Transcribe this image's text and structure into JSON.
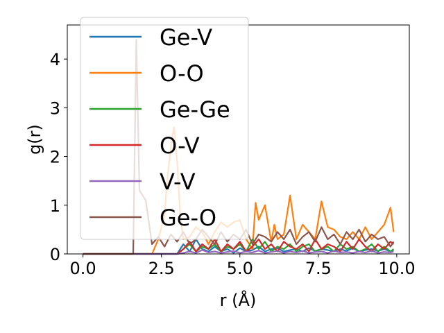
{
  "chart_data": {
    "type": "line",
    "title": "",
    "xlabel": "r (Å)",
    "ylabel": "g(r)",
    "xlim": [
      -0.5,
      10.4
    ],
    "ylim": [
      0,
      4.7
    ],
    "xticks": [
      0.0,
      2.5,
      5.0,
      7.5,
      10.0
    ],
    "xtick_labels": [
      "0.0",
      "2.5",
      "5.0",
      "7.5",
      "10.0"
    ],
    "yticks": [
      0,
      1,
      2,
      3,
      4
    ],
    "ytick_labels": [
      "0",
      "1",
      "2",
      "3",
      "4"
    ],
    "grid": false,
    "legend_position": "upper-left",
    "series": [
      {
        "name": "Ge-V",
        "color": "#1f77b4",
        "x": [
          0.0,
          3.0,
          3.2,
          3.4,
          3.6,
          3.8,
          4.0,
          4.2,
          4.4,
          4.6,
          4.8,
          5.0,
          5.2,
          5.4,
          5.6,
          5.8,
          6.0,
          6.2,
          6.4,
          6.6,
          6.8,
          7.0,
          7.2,
          7.4,
          7.6,
          7.8,
          8.0,
          8.2,
          8.4,
          8.6,
          8.8,
          9.0,
          9.2,
          9.4,
          9.6,
          9.8,
          9.9
        ],
        "y": [
          0,
          0,
          0.2,
          0.05,
          0.3,
          0.1,
          0.05,
          0.15,
          0.05,
          0.1,
          0.02,
          0.12,
          0.05,
          0.08,
          0.15,
          0.05,
          0.1,
          0.12,
          0.05,
          0.08,
          0.1,
          0.05,
          0.12,
          0.06,
          0.1,
          0.08,
          0.05,
          0.1,
          0.06,
          0.12,
          0.05,
          0.08,
          0.1,
          0.06,
          0.1,
          0.05,
          0.08
        ]
      },
      {
        "name": "O-O",
        "color": "#ff7f0e",
        "x": [
          0.0,
          2.2,
          2.4,
          2.6,
          2.7,
          2.8,
          2.9,
          3.0,
          3.1,
          3.2,
          3.4,
          3.6,
          3.8,
          4.0,
          4.2,
          4.4,
          4.6,
          4.8,
          5.0,
          5.2,
          5.4,
          5.5,
          5.6,
          5.8,
          6.0,
          6.1,
          6.2,
          6.4,
          6.6,
          6.8,
          7.0,
          7.2,
          7.4,
          7.6,
          7.8,
          8.0,
          8.2,
          8.4,
          8.6,
          8.8,
          9.0,
          9.2,
          9.4,
          9.6,
          9.8,
          9.9
        ],
        "y": [
          0,
          0,
          0.3,
          0.8,
          1.6,
          2.2,
          2.6,
          1.9,
          0.8,
          0.3,
          0.35,
          0.55,
          0.45,
          0.2,
          0.45,
          0.65,
          0.55,
          0.65,
          0.7,
          0.3,
          0.1,
          1.05,
          0.7,
          1.0,
          0.25,
          0.6,
          0.3,
          0.4,
          1.2,
          0.3,
          0.6,
          0.45,
          0.3,
          1.08,
          0.55,
          0.5,
          0.35,
          0.3,
          0.45,
          0.3,
          0.55,
          0.3,
          0.45,
          0.6,
          0.95,
          0.45
        ]
      },
      {
        "name": "Ge-Ge",
        "color": "#2ca02c",
        "x": [
          0.0,
          3.0,
          3.2,
          3.4,
          3.6,
          3.8,
          4.0,
          4.2,
          4.4,
          4.6,
          4.8,
          5.0,
          5.2,
          5.4,
          5.6,
          5.8,
          6.0,
          6.2,
          6.4,
          6.6,
          6.8,
          7.0,
          7.2,
          7.4,
          7.6,
          7.8,
          8.0,
          8.2,
          8.4,
          8.6,
          8.8,
          9.0,
          9.2,
          9.4,
          9.6,
          9.8,
          9.9
        ],
        "y": [
          0,
          0,
          0.1,
          0.2,
          0.05,
          0.15,
          0.1,
          0.2,
          0.05,
          0.15,
          0.1,
          0.2,
          0.05,
          0.3,
          0.1,
          0.25,
          0.05,
          0.15,
          0.1,
          0.2,
          0.05,
          0.15,
          0.2,
          0.05,
          0.1,
          0.15,
          0.05,
          0.2,
          0.1,
          0.15,
          0.05,
          0.1,
          0.2,
          0.05,
          0.15,
          0.05,
          0.1
        ]
      },
      {
        "name": "O-V",
        "color": "#d62728",
        "x": [
          0.0,
          3.0,
          3.2,
          3.4,
          3.6,
          3.8,
          4.0,
          4.2,
          4.4,
          4.6,
          4.8,
          5.0,
          5.2,
          5.4,
          5.6,
          5.8,
          6.0,
          6.2,
          6.4,
          6.6,
          6.8,
          7.0,
          7.2,
          7.4,
          7.6,
          7.8,
          8.0,
          8.2,
          8.4,
          8.6,
          8.8,
          9.0,
          9.2,
          9.4,
          9.6,
          9.8,
          9.9
        ],
        "y": [
          0,
          0,
          0.1,
          0.25,
          0.05,
          0.2,
          0.1,
          0.3,
          0.05,
          0.2,
          0.1,
          0.25,
          0.05,
          0.15,
          0.3,
          0.1,
          0.2,
          0.05,
          0.25,
          0.15,
          0.1,
          0.2,
          0.05,
          0.3,
          0.1,
          0.2,
          0.15,
          0.05,
          0.25,
          0.1,
          0.3,
          0.15,
          0.05,
          0.2,
          0.1,
          0.25,
          0.2
        ]
      },
      {
        "name": "V-V",
        "color": "#9467bd",
        "x": [
          0.0,
          3.0,
          3.2,
          3.4,
          3.6,
          3.8,
          4.0,
          4.2,
          4.4,
          4.6,
          4.8,
          5.0,
          5.2,
          5.4,
          5.6,
          5.8,
          6.0,
          6.2,
          6.4,
          6.6,
          6.8,
          7.0,
          7.2,
          7.4,
          7.6,
          7.8,
          8.0,
          8.2,
          8.4,
          8.6,
          8.8,
          9.0,
          9.2,
          9.4,
          9.6,
          9.8,
          9.9
        ],
        "y": [
          0,
          0,
          0.02,
          0.05,
          0.02,
          0.08,
          0.03,
          0.05,
          0.02,
          0.04,
          0.06,
          0.02,
          0.05,
          0.03,
          0.07,
          0.02,
          0.04,
          0.06,
          0.02,
          0.05,
          0.03,
          0.06,
          0.02,
          0.04,
          0.05,
          0.02,
          0.06,
          0.03,
          0.04,
          0.02,
          0.05,
          0.03,
          0.06,
          0.02,
          0.04,
          0.03,
          0.05
        ]
      },
      {
        "name": "Ge-O",
        "color": "#8c564b",
        "x": [
          0.0,
          1.6,
          1.7,
          1.8,
          1.9,
          2.0,
          2.2,
          2.4,
          2.6,
          2.8,
          3.0,
          3.2,
          3.4,
          3.6,
          3.8,
          4.0,
          4.2,
          4.4,
          4.6,
          4.8,
          5.0,
          5.2,
          5.4,
          5.6,
          5.8,
          6.0,
          6.2,
          6.4,
          6.6,
          6.8,
          7.0,
          7.2,
          7.4,
          7.6,
          7.8,
          8.0,
          8.2,
          8.4,
          8.6,
          8.8,
          9.0,
          9.2,
          9.4,
          9.6,
          9.8,
          9.9
        ],
        "y": [
          0,
          0,
          4.4,
          1.3,
          1.2,
          1.1,
          0.2,
          0.35,
          0.15,
          0.4,
          0.25,
          0.45,
          0.2,
          0.3,
          0.5,
          0.35,
          0.2,
          0.45,
          0.25,
          0.4,
          0.3,
          0.5,
          0.2,
          0.4,
          0.35,
          0.25,
          0.45,
          0.3,
          0.5,
          0.2,
          0.35,
          0.45,
          0.25,
          0.55,
          0.3,
          0.4,
          0.2,
          0.45,
          0.3,
          0.5,
          0.25,
          0.4,
          0.3,
          0.35,
          0.15,
          0.25
        ]
      }
    ]
  }
}
